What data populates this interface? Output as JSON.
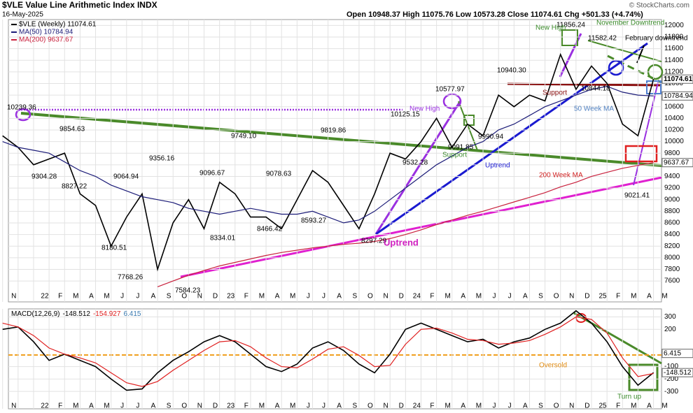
{
  "header": {
    "title": "$VLE Value Line Arithmetic Index INDX",
    "date": "16-May-2025",
    "quote": "Open 10948.37  High 11075.76  Low 10573.28  Close 11074.61  Chg +501.33 (+4.74%)",
    "copyright": "© StockCharts.com"
  },
  "chart_data": [
    {
      "type": "line",
      "categories": [
        "N",
        null,
        "22",
        "F",
        "M",
        "A",
        "M",
        "J",
        "J",
        "A",
        "S",
        "O",
        "N",
        "D",
        "23",
        "F",
        "M",
        "A",
        "M",
        "J",
        "J",
        "A",
        "S",
        "O",
        "N",
        "D",
        "24",
        "F",
        "M",
        "A",
        "M",
        "J",
        "J",
        "A",
        "S",
        "O",
        "N",
        "D",
        "25",
        "F",
        "M",
        "A",
        "M"
      ],
      "series": [
        {
          "name": "$VLE (Weekly) 11074.61",
          "color": "#000000",
          "values": [
            10100,
            9900,
            9600,
            9700,
            9800,
            9100,
            8900,
            8200,
            8700,
            9100,
            7800,
            8600,
            9000,
            8500,
            9300,
            9100,
            8700,
            8700,
            8500,
            9000,
            9500,
            9300,
            8900,
            8500,
            9100,
            9800,
            9700,
            10000,
            10400,
            9900,
            10300,
            10100,
            10800,
            10600,
            10800,
            10700,
            11500,
            10900,
            11300,
            11000,
            10300,
            10100,
            11074.61
          ]
        },
        {
          "name": "MA(50) 10784.94",
          "color": "#1c1c78",
          "values": [
            10000,
            9900,
            9850,
            9800,
            9650,
            9500,
            9400,
            9250,
            9150,
            9050,
            9000,
            8950,
            8850,
            8800,
            8750,
            8800,
            8850,
            8800,
            8750,
            8750,
            8800,
            8700,
            8600,
            8650,
            8800,
            9000,
            9200,
            9400,
            9600,
            9750,
            9900,
            10000,
            10200,
            10300,
            10450,
            10600,
            10700,
            10800,
            10900,
            10950,
            10850,
            10800,
            10784.94
          ]
        },
        {
          "name": "MA(200) 9637.67",
          "color": "#c8203c",
          "values": [
            null,
            null,
            null,
            null,
            null,
            null,
            null,
            null,
            null,
            null,
            7500,
            7600,
            7700,
            7780,
            7860,
            7920,
            7980,
            8040,
            8090,
            8130,
            8170,
            8200,
            8230,
            8250,
            8280,
            8330,
            8400,
            8480,
            8570,
            8650,
            8730,
            8800,
            8880,
            8960,
            9040,
            9120,
            9220,
            9300,
            9400,
            9470,
            9540,
            9590,
            9637.67
          ]
        }
      ],
      "last_value_labels": [
        "11074.61",
        "10784.94",
        "9637.67"
      ],
      "ylim": [
        7240,
        12100
      ],
      "yticks": [
        7600,
        7800,
        8000,
        8200,
        8400,
        8600,
        8800,
        9000,
        9200,
        9400,
        9600,
        9800,
        10000,
        10200,
        10400,
        10600,
        10800,
        11000,
        11200,
        11400,
        11600,
        11800,
        12000
      ],
      "annotations": [
        "10239.36",
        "9854.63",
        "9304.28",
        "8827.22",
        "9064.94",
        "8180.51",
        "7768.26",
        "9356.16",
        "7584.23",
        "9749.10",
        "9096.67",
        "8334.01",
        "9078.63",
        "8466.42",
        "8593.27",
        "9819.86",
        "8297.29",
        "10125.15",
        "9532.28",
        "10577.97",
        "9091.85",
        "9990.94",
        "10940.30",
        "11856.24",
        "11582.42",
        "10844.18",
        "9021.41",
        "New High",
        "New High",
        "November Downtrend",
        "February downtrend",
        "Support",
        "Support",
        "Uptrend",
        "Uptrend",
        "50 Week MA",
        "200 Week MA"
      ]
    },
    {
      "type": "line",
      "title": "MACD(12,26,9)",
      "legend_values": [
        "-148.512",
        "-154.927",
        "6.415"
      ],
      "categories": [
        "N",
        null,
        "22",
        "F",
        "M",
        "A",
        "M",
        "J",
        "J",
        "A",
        "S",
        "O",
        "N",
        "D",
        "23",
        "F",
        "M",
        "A",
        "M",
        "J",
        "J",
        "A",
        "S",
        "O",
        "N",
        "D",
        "24",
        "F",
        "M",
        "A",
        "M",
        "J",
        "J",
        "A",
        "S",
        "O",
        "N",
        "D",
        "25",
        "F",
        "M",
        "A",
        "M"
      ],
      "series": [
        {
          "color": "#000000",
          "values": [
            200,
            220,
            100,
            -50,
            0,
            -50,
            -100,
            -200,
            -290,
            -280,
            -150,
            -50,
            20,
            100,
            150,
            100,
            0,
            -100,
            -140,
            -80,
            50,
            100,
            30,
            -80,
            -150,
            0,
            200,
            250,
            200,
            150,
            100,
            120,
            50,
            100,
            130,
            200,
            250,
            350,
            250,
            100,
            -100,
            -250,
            -148.512
          ]
        },
        {
          "color": "#e02020",
          "values": [
            250,
            220,
            150,
            50,
            0,
            -30,
            -70,
            -150,
            -230,
            -260,
            -220,
            -130,
            -50,
            30,
            100,
            110,
            60,
            -30,
            -100,
            -110,
            -40,
            40,
            60,
            -10,
            -100,
            -90,
            80,
            200,
            210,
            170,
            120,
            110,
            80,
            90,
            110,
            160,
            220,
            300,
            280,
            170,
            -30,
            -180,
            -154.927
          ]
        }
      ],
      "last_value_labels": [
        "6.415",
        "-148.512"
      ],
      "ylim": [
        -440,
        365
      ],
      "yticks": [
        -300,
        -200,
        -100,
        200,
        300
      ],
      "annotations": [
        "Oversold",
        "Turn up"
      ]
    }
  ]
}
